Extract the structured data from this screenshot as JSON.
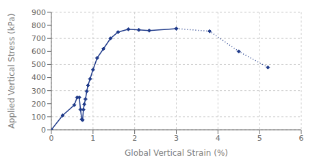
{
  "chart_data": {
    "type": "line",
    "xlabel": "Global Vertical Strain (%)",
    "ylabel": "Applied Vertical Stress (kPa)",
    "xlim": [
      0,
      6
    ],
    "ylim": [
      0,
      900
    ],
    "xticks": [
      0,
      1,
      2,
      3,
      4,
      5,
      6
    ],
    "yticks": [
      0,
      100,
      200,
      300,
      400,
      500,
      600,
      700,
      800,
      900
    ],
    "grid": true,
    "series": [
      {
        "color": "#1F3A8A",
        "line_style": "solid",
        "marker": "diamond",
        "x": [
          0,
          0.27,
          0.55,
          0.62,
          0.67,
          0.7,
          0.73,
          0.75,
          0.77,
          0.79,
          0.82,
          0.85,
          0.88,
          0.93,
          1.0,
          1.1,
          1.25,
          1.42,
          1.6,
          1.85,
          2.1,
          2.35,
          3.0
        ],
        "values": [
          0,
          110,
          190,
          248,
          248,
          155,
          80,
          75,
          155,
          195,
          235,
          295,
          340,
          390,
          460,
          550,
          620,
          700,
          748,
          770,
          765,
          760,
          775
        ]
      },
      {
        "color": "#1F3A8A",
        "line_style": "dotted",
        "marker": "diamond",
        "x": [
          3.0,
          3.8,
          4.5,
          5.2
        ],
        "values": [
          775,
          755,
          600,
          478
        ]
      }
    ]
  }
}
